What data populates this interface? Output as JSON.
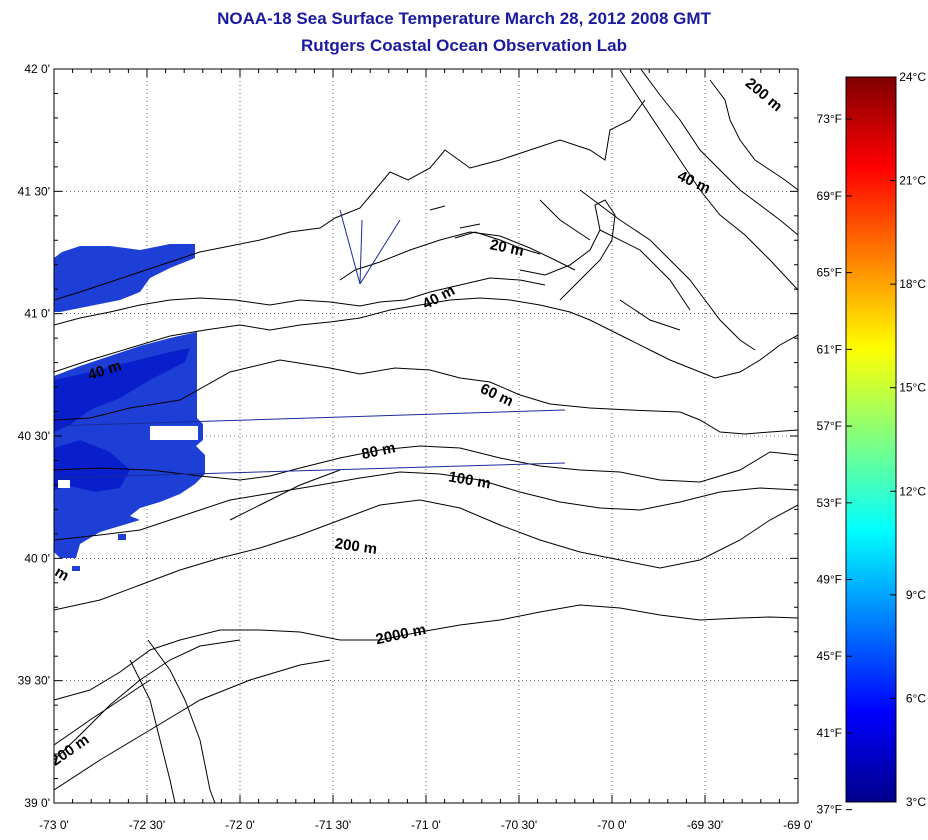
{
  "title": "NOAA-18 Sea Surface Temperature March 28, 2012 2008 GMT",
  "subtitle": "Rutgers Coastal Ocean Observation Lab",
  "map": {
    "lat_ticks": [
      {
        "value": 42.0,
        "label": "42 0'"
      },
      {
        "value": 41.5,
        "label": "41 30'"
      },
      {
        "value": 41.0,
        "label": "41 0'"
      },
      {
        "value": 40.5,
        "label": "40 30'"
      },
      {
        "value": 40.0,
        "label": "40 0'"
      },
      {
        "value": 39.5,
        "label": "39 30'"
      },
      {
        "value": 39.0,
        "label": "39 0'"
      }
    ],
    "lon_ticks": [
      {
        "value": -73.0,
        "label": "-73 0'"
      },
      {
        "value": -72.5,
        "label": "-72 30'"
      },
      {
        "value": -72.0,
        "label": "-72 0'"
      },
      {
        "value": -71.5,
        "label": "-71 30'"
      },
      {
        "value": -71.0,
        "label": "-71 0'"
      },
      {
        "value": -70.5,
        "label": "-70 30'"
      },
      {
        "value": -70.0,
        "label": "-70 0'"
      },
      {
        "value": -69.5,
        "label": "-69 30'"
      },
      {
        "value": -69.0,
        "label": "-69 0'"
      }
    ],
    "lat_range": [
      39.0,
      42.0
    ],
    "lon_range": [
      -73.0,
      -69.0
    ],
    "grid": true,
    "isobath_labels": [
      {
        "text": "200 m",
        "lon": -69.2,
        "lat": 41.88,
        "angle": 40
      },
      {
        "text": "40 m",
        "lon": -69.57,
        "lat": 41.52,
        "angle": 25
      },
      {
        "text": "20 m",
        "lon": -70.57,
        "lat": 41.25,
        "angle": 12
      },
      {
        "text": "40 m",
        "lon": -70.92,
        "lat": 41.05,
        "angle": -28
      },
      {
        "text": "40 m",
        "lon": -72.72,
        "lat": 40.75,
        "angle": -18
      },
      {
        "text": "60 m",
        "lon": -70.63,
        "lat": 40.65,
        "angle": 25
      },
      {
        "text": "80 m",
        "lon": -71.25,
        "lat": 40.42,
        "angle": -12
      },
      {
        "text": "100 m",
        "lon": -70.77,
        "lat": 40.3,
        "angle": 10
      },
      {
        "text": "200 m",
        "lon": -71.38,
        "lat": 40.03,
        "angle": 8
      },
      {
        "text": "2000 m",
        "lon": -71.13,
        "lat": 39.67,
        "angle": -12
      },
      {
        "text": "200 m",
        "lon": -72.9,
        "lat": 39.2,
        "angle": -35
      },
      {
        "text": "m",
        "lon": -72.97,
        "lat": 39.92,
        "angle": 30
      }
    ]
  },
  "colorbar": {
    "celsius": [
      {
        "value": 24,
        "label": "24°C"
      },
      {
        "value": 21,
        "label": "21°C"
      },
      {
        "value": 18,
        "label": "18°C"
      },
      {
        "value": 15,
        "label": "15°C"
      },
      {
        "value": 12,
        "label": "12°C"
      },
      {
        "value": 9,
        "label": "9°C"
      },
      {
        "value": 6,
        "label": "6°C"
      },
      {
        "value": 3,
        "label": "3°C"
      }
    ],
    "fahrenheit": [
      {
        "value": 73,
        "label": "73°F"
      },
      {
        "value": 69,
        "label": "69°F"
      },
      {
        "value": 65,
        "label": "65°F"
      },
      {
        "value": 61,
        "label": "61°F"
      },
      {
        "value": 57,
        "label": "57°F"
      },
      {
        "value": 53,
        "label": "53°F"
      },
      {
        "value": 49,
        "label": "49°F"
      },
      {
        "value": 45,
        "label": "45°F"
      },
      {
        "value": 41,
        "label": "41°F"
      },
      {
        "value": 37,
        "label": "37°F"
      }
    ],
    "range_c": [
      3,
      24
    ],
    "colors": [
      "#00008b",
      "#0000ff",
      "#0080ff",
      "#00ffff",
      "#80ff80",
      "#ffff00",
      "#ff8000",
      "#ff0000",
      "#800000"
    ]
  },
  "colors": {
    "title": "#1a1aa0",
    "sst_cold": "#1e3fd6",
    "sst_colder": "#0a1fcc",
    "track": "#1a2a9a",
    "contour": "#000000"
  }
}
